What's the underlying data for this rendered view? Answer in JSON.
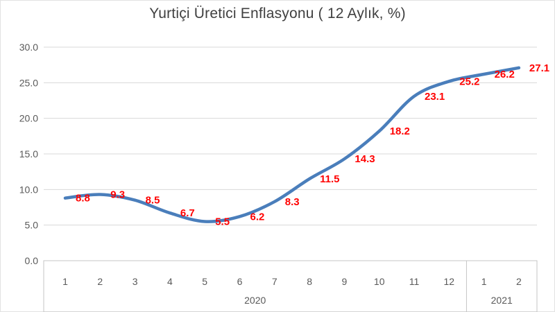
{
  "chart_data": {
    "type": "line",
    "title": "Yurtiçi Üretici Enflasyonu ( 12 Aylık, %)",
    "categories": [
      "1",
      "2",
      "3",
      "4",
      "5",
      "6",
      "7",
      "8",
      "9",
      "10",
      "11",
      "12",
      "1",
      "2"
    ],
    "year_groups": [
      {
        "label": "2020",
        "count": 12
      },
      {
        "label": "2021",
        "count": 2
      }
    ],
    "series": [
      {
        "name": "Yurtiçi Üretici Enflasyonu (12 Aylık, %)",
        "values": [
          8.8,
          9.3,
          8.5,
          6.7,
          5.5,
          6.2,
          8.3,
          11.5,
          14.3,
          18.2,
          23.1,
          25.2,
          26.2,
          27.1
        ],
        "data_labels": [
          "8.8",
          "9.3",
          "8.5",
          "6.7",
          "5.5",
          "6.2",
          "8.3",
          "11.5",
          "14.3",
          "18.2",
          "23.1",
          "25.2",
          "26.2",
          "27.1"
        ]
      }
    ],
    "xlabel": "",
    "ylabel": "",
    "ylim": [
      0,
      30
    ],
    "yticks": [
      30,
      25,
      20,
      15,
      10,
      5,
      0
    ],
    "ytick_labels": [
      "30.0",
      "25.0",
      "20.0",
      "15.0",
      "10.0",
      "5.0",
      "0.0"
    ],
    "grid": true,
    "legend": "none",
    "smoothed_line": true,
    "colors": {
      "line": "#4A7EBB",
      "data_label": "#FF0000",
      "axis_text": "#595959",
      "title_text": "#404040",
      "gridline": "#D8D8D8",
      "table_border": "#C6C6C6"
    }
  }
}
